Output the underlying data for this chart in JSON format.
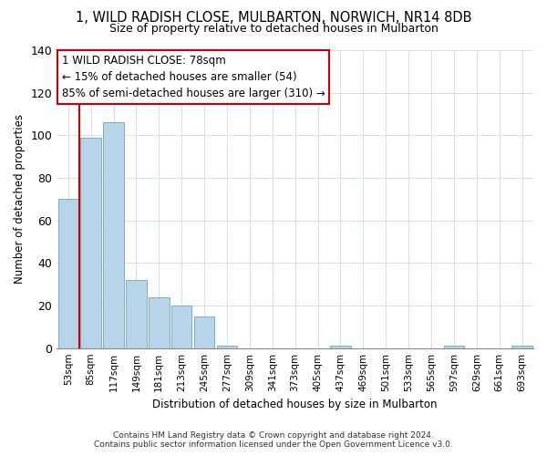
{
  "title": "1, WILD RADISH CLOSE, MULBARTON, NORWICH, NR14 8DB",
  "subtitle": "Size of property relative to detached houses in Mulbarton",
  "xlabel": "Distribution of detached houses by size in Mulbarton",
  "ylabel": "Number of detached properties",
  "bar_labels": [
    "53sqm",
    "85sqm",
    "117sqm",
    "149sqm",
    "181sqm",
    "213sqm",
    "245sqm",
    "277sqm",
    "309sqm",
    "341sqm",
    "373sqm",
    "405sqm",
    "437sqm",
    "469sqm",
    "501sqm",
    "533sqm",
    "565sqm",
    "597sqm",
    "629sqm",
    "661sqm",
    "693sqm"
  ],
  "bar_values": [
    70,
    99,
    106,
    32,
    24,
    20,
    15,
    1,
    0,
    0,
    0,
    0,
    1,
    0,
    0,
    0,
    0,
    1,
    0,
    0,
    1
  ],
  "bar_color": "#b8d4e8",
  "bar_edge_color": "#7aafc8",
  "highlight_color": "#cc0000",
  "property_line_x": 0.5,
  "annotation_title": "1 WILD RADISH CLOSE: 78sqm",
  "annotation_line1": "← 15% of detached houses are smaller (54)",
  "annotation_line2": "85% of semi-detached houses are larger (310) →",
  "annotation_box_color": "#ffffff",
  "annotation_border_color": "#cc0000",
  "ylim": [
    0,
    140
  ],
  "footer_line1": "Contains HM Land Registry data © Crown copyright and database right 2024.",
  "footer_line2": "Contains public sector information licensed under the Open Government Licence v3.0.",
  "bg_color": "#ffffff",
  "grid_color": "#ccddee"
}
